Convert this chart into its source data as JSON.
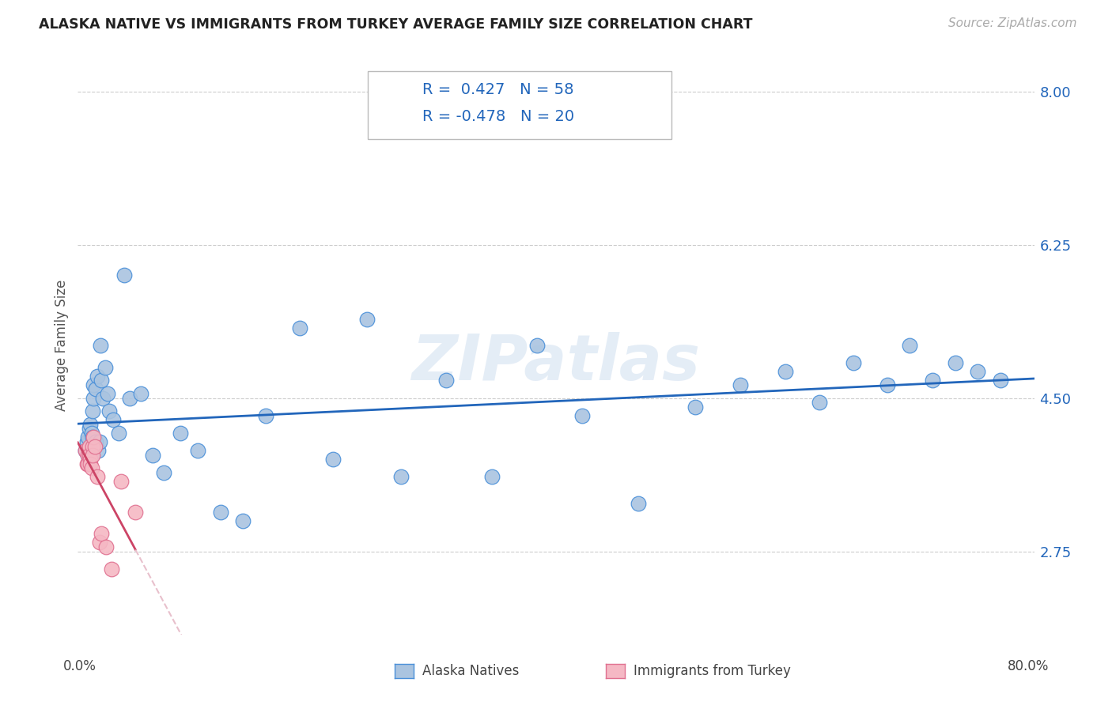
{
  "title": "ALASKA NATIVE VS IMMIGRANTS FROM TURKEY AVERAGE FAMILY SIZE CORRELATION CHART",
  "source": "Source: ZipAtlas.com",
  "ylabel": "Average Family Size",
  "ytick_labels": [
    "2.75",
    "4.50",
    "6.25",
    "8.00"
  ],
  "ytick_values": [
    2.75,
    4.5,
    6.25,
    8.0
  ],
  "ymin": 1.8,
  "ymax": 8.4,
  "xmin": -0.006,
  "xmax": 0.84,
  "legend_label1": "Alaska Natives",
  "legend_label2": "Immigrants from Turkey",
  "alaska_color": "#aac4e0",
  "alaska_edge_color": "#4a90d9",
  "alaska_line_color": "#2266bb",
  "turkey_color": "#f5b8c4",
  "turkey_edge_color": "#e07090",
  "turkey_line_color": "#cc4466",
  "turkey_dash_color": "#e8c0cc",
  "watermark": "ZIPatlas",
  "background_color": "#ffffff",
  "grid_color": "#cccccc",
  "alaska_x": [
    0.001,
    0.002,
    0.003,
    0.003,
    0.004,
    0.004,
    0.005,
    0.005,
    0.006,
    0.006,
    0.007,
    0.007,
    0.008,
    0.008,
    0.009,
    0.01,
    0.01,
    0.011,
    0.012,
    0.013,
    0.014,
    0.015,
    0.016,
    0.018,
    0.02,
    0.022,
    0.025,
    0.03,
    0.035,
    0.04,
    0.05,
    0.06,
    0.07,
    0.085,
    0.1,
    0.12,
    0.14,
    0.16,
    0.19,
    0.22,
    0.25,
    0.28,
    0.32,
    0.36,
    0.4,
    0.44,
    0.49,
    0.54,
    0.58,
    0.62,
    0.65,
    0.68,
    0.71,
    0.73,
    0.75,
    0.77,
    0.79,
    0.81
  ],
  "alaska_y": [
    3.9,
    4.0,
    3.85,
    4.05,
    3.9,
    4.15,
    3.95,
    4.2,
    3.85,
    4.1,
    4.05,
    4.35,
    4.5,
    4.65,
    3.95,
    4.0,
    4.6,
    4.75,
    3.9,
    4.0,
    5.1,
    4.7,
    4.5,
    4.85,
    4.55,
    4.35,
    4.25,
    4.1,
    5.9,
    4.5,
    4.55,
    3.85,
    3.65,
    4.1,
    3.9,
    3.2,
    3.1,
    4.3,
    5.3,
    3.8,
    5.4,
    3.6,
    4.7,
    3.6,
    5.1,
    4.3,
    3.3,
    4.4,
    4.65,
    4.8,
    4.45,
    4.9,
    4.65,
    5.1,
    4.7,
    4.9,
    4.8,
    4.7
  ],
  "turkey_x": [
    0.001,
    0.002,
    0.003,
    0.003,
    0.004,
    0.004,
    0.005,
    0.005,
    0.006,
    0.007,
    0.007,
    0.008,
    0.009,
    0.011,
    0.013,
    0.015,
    0.019,
    0.024,
    0.032,
    0.045
  ],
  "turkey_y": [
    3.9,
    3.75,
    3.85,
    3.75,
    3.95,
    3.85,
    3.8,
    3.75,
    3.7,
    3.95,
    3.85,
    4.05,
    3.95,
    3.6,
    2.85,
    2.95,
    2.8,
    2.55,
    3.55,
    3.2
  ]
}
